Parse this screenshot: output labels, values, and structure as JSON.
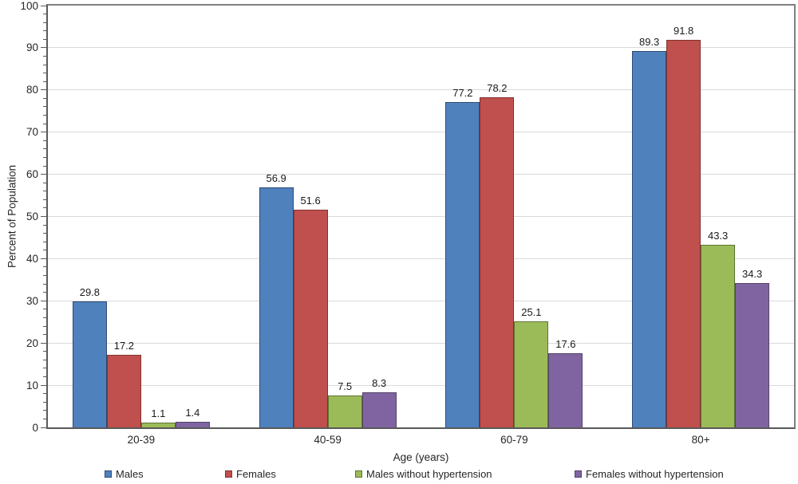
{
  "chart_data": {
    "type": "bar",
    "categories": [
      "20-39",
      "40-59",
      "60-79",
      "80+"
    ],
    "series": [
      {
        "name": "Males",
        "color": "#4F81BD",
        "border_color": "#2E4A73",
        "values": [
          29.8,
          56.9,
          77.2,
          89.3
        ]
      },
      {
        "name": "Females",
        "color": "#C0504D",
        "border_color": "#7F3230",
        "values": [
          17.2,
          51.6,
          78.2,
          91.8
        ]
      },
      {
        "name": "Males without hypertension",
        "color": "#9BBB59",
        "border_color": "#5F7434",
        "values": [
          1.1,
          7.5,
          25.1,
          43.3
        ]
      },
      {
        "name": "Females without hypertension",
        "color": "#8064A2",
        "border_color": "#544269",
        "values": [
          1.4,
          8.3,
          17.6,
          34.3
        ]
      }
    ],
    "xlabel": "Age (years)",
    "ylabel": "Percent of Population",
    "ylim": [
      0,
      100
    ],
    "y_major_step": 10,
    "y_minor_step": 2,
    "y_tick_labels": [
      "0",
      "10",
      "20",
      "30",
      "40",
      "50",
      "60",
      "70",
      "80",
      "90",
      "100"
    ],
    "grid": "horizontal major gridlines only",
    "legend_position": "bottom",
    "data_labels": true,
    "colors": {
      "gridline": "#D9D9D9",
      "axis": "#595959",
      "plot_border": "#808080",
      "text": "#262626",
      "background": "#FFFFFF"
    }
  }
}
